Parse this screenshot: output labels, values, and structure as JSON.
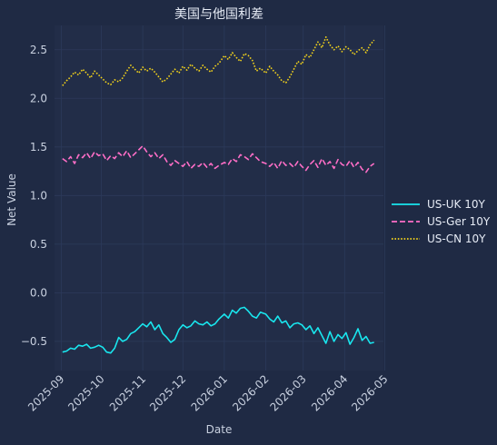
{
  "chart_data": {
    "type": "line",
    "title": "美国与他国利差",
    "xlabel": "Date",
    "ylabel": "Net Value",
    "xlim": [
      "2025-08-27",
      "2026-04-30"
    ],
    "ylim": [
      -0.8,
      2.75
    ],
    "y_ticks": [
      -0.5,
      0.0,
      0.5,
      1.0,
      1.5,
      2.0,
      2.5
    ],
    "y_tick_labels": [
      "−0.5",
      "0.0",
      "0.5",
      "1.0",
      "1.5",
      "2.0",
      "2.5"
    ],
    "x_ticks": [
      "2025-09-01",
      "2025-10-01",
      "2025-11-01",
      "2025-12-01",
      "2026-01-01",
      "2026-02-01",
      "2026-03-01",
      "2026-04-01",
      "2026-05-01"
    ],
    "x_tick_labels": [
      "2025-09",
      "2025-10",
      "2025-11",
      "2025-12",
      "2026-01",
      "2026-02",
      "2026-03",
      "2026-04",
      "2026-05"
    ],
    "grid": true,
    "legend_position": "center-right",
    "colors": {
      "background": "#1f2a44",
      "grid": "#2c3a5a",
      "text": "#c9d1e0"
    },
    "series": [
      {
        "name": "US-UK 10Y",
        "color": "#19e6ee",
        "style": "solid",
        "x": [
          "2025-09-02",
          "2025-09-05",
          "2025-09-08",
          "2025-09-11",
          "2025-09-14",
          "2025-09-17",
          "2025-09-20",
          "2025-09-23",
          "2025-09-26",
          "2025-09-29",
          "2025-10-02",
          "2025-10-05",
          "2025-10-08",
          "2025-10-11",
          "2025-10-14",
          "2025-10-17",
          "2025-10-20",
          "2025-10-23",
          "2025-10-26",
          "2025-10-29",
          "2025-11-01",
          "2025-11-04",
          "2025-11-07",
          "2025-11-10",
          "2025-11-13",
          "2025-11-16",
          "2025-11-19",
          "2025-11-22",
          "2025-11-25",
          "2025-11-28",
          "2025-12-01",
          "2025-12-04",
          "2025-12-07",
          "2025-12-10",
          "2025-12-13",
          "2025-12-16",
          "2025-12-19",
          "2025-12-22",
          "2025-12-25",
          "2025-12-28",
          "2026-01-01",
          "2026-01-04",
          "2026-01-07",
          "2026-01-10",
          "2026-01-13",
          "2026-01-16",
          "2026-01-19",
          "2026-01-22",
          "2026-01-25",
          "2026-01-28",
          "2026-02-01",
          "2026-02-04",
          "2026-02-07",
          "2026-02-10",
          "2026-02-13",
          "2026-02-16",
          "2026-02-19",
          "2026-02-22",
          "2026-02-25",
          "2026-02-28",
          "2026-03-03",
          "2026-03-06",
          "2026-03-09",
          "2026-03-12",
          "2026-03-15",
          "2026-03-18",
          "2026-03-21",
          "2026-03-24",
          "2026-03-27",
          "2026-03-30",
          "2026-04-02",
          "2026-04-05",
          "2026-04-08",
          "2026-04-11",
          "2026-04-14",
          "2026-04-17",
          "2026-04-20",
          "2026-04-23"
        ],
        "values": [
          -0.61,
          -0.6,
          -0.57,
          -0.58,
          -0.54,
          -0.55,
          -0.53,
          -0.57,
          -0.56,
          -0.54,
          -0.56,
          -0.61,
          -0.62,
          -0.57,
          -0.46,
          -0.5,
          -0.48,
          -0.42,
          -0.4,
          -0.36,
          -0.32,
          -0.35,
          -0.3,
          -0.38,
          -0.33,
          -0.42,
          -0.46,
          -0.51,
          -0.48,
          -0.38,
          -0.33,
          -0.36,
          -0.34,
          -0.29,
          -0.32,
          -0.33,
          -0.3,
          -0.34,
          -0.32,
          -0.27,
          -0.22,
          -0.26,
          -0.18,
          -0.21,
          -0.16,
          -0.15,
          -0.19,
          -0.24,
          -0.26,
          -0.2,
          -0.22,
          -0.27,
          -0.3,
          -0.24,
          -0.31,
          -0.29,
          -0.36,
          -0.32,
          -0.31,
          -0.33,
          -0.38,
          -0.34,
          -0.42,
          -0.36,
          -0.44,
          -0.52,
          -0.4,
          -0.5,
          -0.43,
          -0.47,
          -0.41,
          -0.53,
          -0.46,
          -0.37,
          -0.49,
          -0.45,
          -0.52,
          -0.51
        ]
      },
      {
        "name": "US-Ger 10Y",
        "color": "#ff6ec7",
        "style": "dashed",
        "x": [
          "2025-09-02",
          "2025-09-05",
          "2025-09-08",
          "2025-09-11",
          "2025-09-14",
          "2025-09-17",
          "2025-09-20",
          "2025-09-23",
          "2025-09-26",
          "2025-09-29",
          "2025-10-02",
          "2025-10-05",
          "2025-10-08",
          "2025-10-11",
          "2025-10-14",
          "2025-10-17",
          "2025-10-20",
          "2025-10-23",
          "2025-10-26",
          "2025-10-29",
          "2025-11-01",
          "2025-11-04",
          "2025-11-07",
          "2025-11-10",
          "2025-11-13",
          "2025-11-16",
          "2025-11-19",
          "2025-11-22",
          "2025-11-25",
          "2025-11-28",
          "2025-12-01",
          "2025-12-04",
          "2025-12-07",
          "2025-12-10",
          "2025-12-13",
          "2025-12-16",
          "2025-12-19",
          "2025-12-22",
          "2025-12-25",
          "2025-12-28",
          "2026-01-01",
          "2026-01-04",
          "2026-01-07",
          "2026-01-10",
          "2026-01-13",
          "2026-01-16",
          "2026-01-19",
          "2026-01-22",
          "2026-01-25",
          "2026-01-28",
          "2026-02-01",
          "2026-02-04",
          "2026-02-07",
          "2026-02-10",
          "2026-02-13",
          "2026-02-16",
          "2026-02-19",
          "2026-02-22",
          "2026-02-25",
          "2026-02-28",
          "2026-03-03",
          "2026-03-06",
          "2026-03-09",
          "2026-03-12",
          "2026-03-15",
          "2026-03-18",
          "2026-03-21",
          "2026-03-24",
          "2026-03-27",
          "2026-03-30",
          "2026-04-02",
          "2026-04-05",
          "2026-04-08",
          "2026-04-11",
          "2026-04-14",
          "2026-04-17",
          "2026-04-20",
          "2026-04-23"
        ],
        "values": [
          1.38,
          1.35,
          1.4,
          1.33,
          1.42,
          1.39,
          1.44,
          1.38,
          1.45,
          1.41,
          1.43,
          1.36,
          1.41,
          1.38,
          1.44,
          1.4,
          1.46,
          1.39,
          1.43,
          1.47,
          1.51,
          1.45,
          1.4,
          1.44,
          1.38,
          1.42,
          1.35,
          1.31,
          1.36,
          1.33,
          1.3,
          1.35,
          1.28,
          1.32,
          1.3,
          1.34,
          1.29,
          1.33,
          1.28,
          1.31,
          1.34,
          1.32,
          1.38,
          1.35,
          1.42,
          1.4,
          1.37,
          1.43,
          1.39,
          1.35,
          1.33,
          1.3,
          1.34,
          1.28,
          1.36,
          1.31,
          1.33,
          1.29,
          1.35,
          1.3,
          1.26,
          1.32,
          1.36,
          1.29,
          1.38,
          1.31,
          1.35,
          1.28,
          1.37,
          1.32,
          1.3,
          1.36,
          1.29,
          1.34,
          1.27,
          1.24,
          1.3,
          1.33
        ]
      },
      {
        "name": "US-CN 10Y",
        "color": "#f2d21b",
        "style": "dotted",
        "x": [
          "2025-09-02",
          "2025-09-05",
          "2025-09-08",
          "2025-09-11",
          "2025-09-14",
          "2025-09-17",
          "2025-09-20",
          "2025-09-23",
          "2025-09-26",
          "2025-09-29",
          "2025-10-02",
          "2025-10-05",
          "2025-10-08",
          "2025-10-11",
          "2025-10-14",
          "2025-10-17",
          "2025-10-20",
          "2025-10-23",
          "2025-10-26",
          "2025-10-29",
          "2025-11-01",
          "2025-11-04",
          "2025-11-07",
          "2025-11-10",
          "2025-11-13",
          "2025-11-16",
          "2025-11-19",
          "2025-11-22",
          "2025-11-25",
          "2025-11-28",
          "2025-12-01",
          "2025-12-04",
          "2025-12-07",
          "2025-12-10",
          "2025-12-13",
          "2025-12-16",
          "2025-12-19",
          "2025-12-22",
          "2025-12-25",
          "2025-12-28",
          "2026-01-01",
          "2026-01-04",
          "2026-01-07",
          "2026-01-10",
          "2026-01-13",
          "2026-01-16",
          "2026-01-19",
          "2026-01-22",
          "2026-01-25",
          "2026-01-28",
          "2026-02-01",
          "2026-02-04",
          "2026-02-07",
          "2026-02-10",
          "2026-02-13",
          "2026-02-16",
          "2026-02-19",
          "2026-02-22",
          "2026-02-25",
          "2026-02-28",
          "2026-03-03",
          "2026-03-06",
          "2026-03-09",
          "2026-03-12",
          "2026-03-15",
          "2026-03-18",
          "2026-03-21",
          "2026-03-24",
          "2026-03-27",
          "2026-03-30",
          "2026-04-02",
          "2026-04-05",
          "2026-04-08",
          "2026-04-11",
          "2026-04-14",
          "2026-04-17",
          "2026-04-20",
          "2026-04-23"
        ],
        "values": [
          2.13,
          2.18,
          2.22,
          2.27,
          2.24,
          2.3,
          2.26,
          2.21,
          2.28,
          2.24,
          2.2,
          2.16,
          2.14,
          2.19,
          2.17,
          2.21,
          2.28,
          2.34,
          2.3,
          2.26,
          2.32,
          2.28,
          2.31,
          2.27,
          2.22,
          2.17,
          2.2,
          2.25,
          2.3,
          2.26,
          2.33,
          2.29,
          2.35,
          2.31,
          2.28,
          2.34,
          2.3,
          2.27,
          2.33,
          2.36,
          2.44,
          2.4,
          2.47,
          2.42,
          2.38,
          2.46,
          2.44,
          2.39,
          2.28,
          2.31,
          2.26,
          2.33,
          2.28,
          2.24,
          2.18,
          2.16,
          2.22,
          2.3,
          2.38,
          2.35,
          2.45,
          2.42,
          2.5,
          2.58,
          2.52,
          2.63,
          2.55,
          2.5,
          2.54,
          2.48,
          2.53,
          2.5,
          2.45,
          2.49,
          2.52,
          2.47,
          2.55,
          2.6
        ]
      }
    ]
  }
}
